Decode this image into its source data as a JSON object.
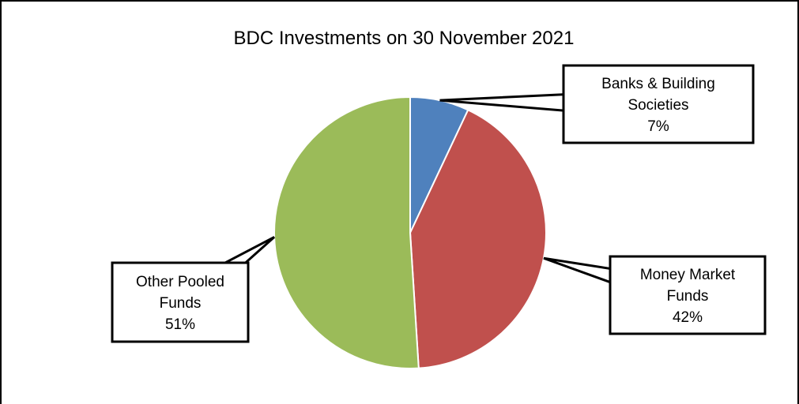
{
  "chart_data": {
    "type": "pie",
    "title": "BDC Investments on 30 November 2021",
    "slices": [
      {
        "label_lines": [
          "Banks & Building",
          "Societies"
        ],
        "value": 7,
        "display": "7%",
        "color": "#4f81bd"
      },
      {
        "label_lines": [
          "Money Market",
          "Funds"
        ],
        "value": 42,
        "display": "42%",
        "color": "#c0504d"
      },
      {
        "label_lines": [
          "Other Pooled",
          "Funds"
        ],
        "value": 51,
        "display": "51%",
        "color": "#9bbb59"
      }
    ]
  }
}
